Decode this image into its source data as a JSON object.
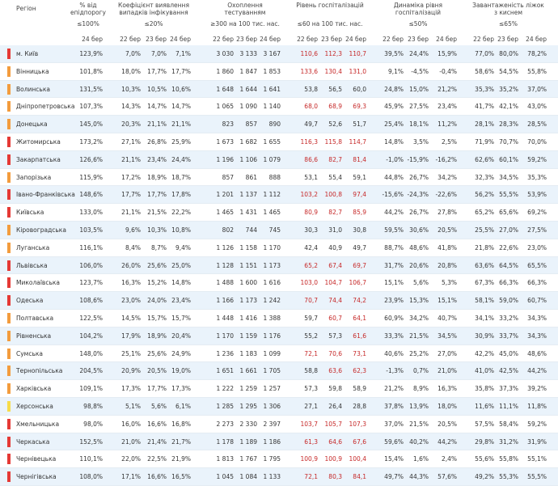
{
  "header": {
    "region": "Регіон",
    "groups": [
      {
        "title": "% від епідпорогу",
        "threshold": "≤100%",
        "dates": [
          "24 бер"
        ]
      },
      {
        "title": "Коефіцієнт виявлення випадків інфікування",
        "threshold": "≤20%",
        "dates": [
          "22 бер",
          "23 бер",
          "24 бер"
        ]
      },
      {
        "title": "Охоплення тестуванням",
        "threshold": "≥300 на 100 тис. нас.",
        "dates": [
          "22 бер",
          "23 бер",
          "24 бер"
        ]
      },
      {
        "title": "Рівень госпіталізацій",
        "threshold": "≤60 на 100 тис. нас.",
        "dates": [
          "22 бер",
          "23 бер",
          "24 бер"
        ]
      },
      {
        "title": "Динаміка рівня госпіталізацій",
        "threshold": "≤50%",
        "dates": [
          "22 бер",
          "23 бер",
          "24 бер"
        ]
      },
      {
        "title": "Завантаженість ліжок з киснем",
        "threshold": "≤65%",
        "dates": [
          "22 бер",
          "23 бер",
          "24 бер"
        ]
      }
    ]
  },
  "table": {
    "rows": [
      {
        "region": "м. Київ",
        "status_color": "#e53935",
        "cells": [
          "123,9%",
          "7,0%",
          "7,0%",
          "7,1%",
          "3 030",
          "3 133",
          "3 167",
          "110,6",
          "112,3",
          "110,7",
          "39,5%",
          "24,4%",
          "15,9%",
          "77,0%",
          "80,0%",
          "78,2%"
        ],
        "hosp_colors": [
          "#c62828",
          "#c62828",
          "#c62828"
        ]
      },
      {
        "region": "Вінницька",
        "status_color": "#f39c3d",
        "cells": [
          "101,8%",
          "18,0%",
          "17,7%",
          "17,7%",
          "1 860",
          "1 847",
          "1 853",
          "133,6",
          "130,4",
          "131,0",
          "9,1%",
          "-4,5%",
          "-0,4%",
          "58,6%",
          "54,5%",
          "55,8%"
        ],
        "hosp_colors": [
          "#c62828",
          "#c62828",
          "#c62828"
        ]
      },
      {
        "region": "Волинська",
        "status_color": "#f39c3d",
        "cells": [
          "131,5%",
          "10,3%",
          "10,5%",
          "10,6%",
          "1 648",
          "1 644",
          "1 641",
          "53,8",
          "56,5",
          "60,0",
          "24,8%",
          "15,0%",
          "21,2%",
          "35,3%",
          "35,2%",
          "37,0%"
        ],
        "hosp_colors": [
          "#333333",
          "#333333",
          "#333333"
        ]
      },
      {
        "region": "Дніпропетровська",
        "status_color": "#f39c3d",
        "cells": [
          "107,3%",
          "14,3%",
          "14,7%",
          "14,7%",
          "1 065",
          "1 090",
          "1 140",
          "68,0",
          "68,9",
          "69,3",
          "45,9%",
          "27,5%",
          "23,4%",
          "41,7%",
          "42,1%",
          "43,0%"
        ],
        "hosp_colors": [
          "#c62828",
          "#c62828",
          "#c62828"
        ]
      },
      {
        "region": "Донецька",
        "status_color": "#f39c3d",
        "cells": [
          "145,0%",
          "20,3%",
          "21,1%",
          "21,1%",
          "823",
          "857",
          "890",
          "49,7",
          "52,6",
          "51,7",
          "25,4%",
          "18,1%",
          "11,2%",
          "28,1%",
          "28,3%",
          "28,5%"
        ],
        "hosp_colors": [
          "#333333",
          "#333333",
          "#333333"
        ]
      },
      {
        "region": "Житомирська",
        "status_color": "#e53935",
        "cells": [
          "173,2%",
          "27,1%",
          "26,8%",
          "25,9%",
          "1 673",
          "1 682",
          "1 655",
          "116,3",
          "115,8",
          "114,7",
          "14,8%",
          "3,5%",
          "2,5%",
          "71,9%",
          "70,7%",
          "70,0%"
        ],
        "hosp_colors": [
          "#c62828",
          "#c62828",
          "#c62828"
        ]
      },
      {
        "region": "Закарпатська",
        "status_color": "#e53935",
        "cells": [
          "126,6%",
          "21,1%",
          "23,4%",
          "24,4%",
          "1 196",
          "1 106",
          "1 079",
          "86,6",
          "82,7",
          "81,4",
          "-1,0%",
          "-15,9%",
          "-16,2%",
          "62,6%",
          "60,1%",
          "59,2%"
        ],
        "hosp_colors": [
          "#c62828",
          "#c62828",
          "#c62828"
        ]
      },
      {
        "region": "Запорізька",
        "status_color": "#f39c3d",
        "cells": [
          "115,9%",
          "17,2%",
          "18,9%",
          "18,7%",
          "857",
          "861",
          "888",
          "53,1",
          "55,4",
          "59,1",
          "44,8%",
          "26,7%",
          "34,2%",
          "32,3%",
          "34,5%",
          "35,3%"
        ],
        "hosp_colors": [
          "#333333",
          "#333333",
          "#333333"
        ]
      },
      {
        "region": "Івано-Франківська",
        "status_color": "#e53935",
        "cells": [
          "148,6%",
          "17,7%",
          "17,7%",
          "17,8%",
          "1 201",
          "1 137",
          "1 112",
          "103,2",
          "100,8",
          "97,4",
          "-15,6%",
          "-24,3%",
          "-22,6%",
          "56,2%",
          "55,5%",
          "53,9%"
        ],
        "hosp_colors": [
          "#c62828",
          "#c62828",
          "#c62828"
        ]
      },
      {
        "region": "Київська",
        "status_color": "#e53935",
        "cells": [
          "133,0%",
          "21,1%",
          "21,5%",
          "22,2%",
          "1 465",
          "1 431",
          "1 465",
          "80,9",
          "82,7",
          "85,9",
          "44,2%",
          "26,7%",
          "27,8%",
          "65,2%",
          "65,6%",
          "69,2%"
        ],
        "hosp_colors": [
          "#c62828",
          "#c62828",
          "#c62828"
        ]
      },
      {
        "region": "Кіровоградська",
        "status_color": "#f39c3d",
        "cells": [
          "103,5%",
          "9,6%",
          "10,3%",
          "10,8%",
          "802",
          "744",
          "745",
          "30,3",
          "31,0",
          "30,8",
          "59,5%",
          "30,6%",
          "20,5%",
          "25,5%",
          "27,0%",
          "27,5%"
        ],
        "hosp_colors": [
          "#333333",
          "#333333",
          "#333333"
        ]
      },
      {
        "region": "Луганська",
        "status_color": "#f39c3d",
        "cells": [
          "116,1%",
          "8,4%",
          "8,7%",
          "9,4%",
          "1 126",
          "1 158",
          "1 170",
          "42,4",
          "40,9",
          "49,7",
          "88,7%",
          "48,6%",
          "41,8%",
          "21,8%",
          "22,6%",
          "23,0%"
        ],
        "hosp_colors": [
          "#333333",
          "#333333",
          "#333333"
        ]
      },
      {
        "region": "Львівська",
        "status_color": "#e53935",
        "cells": [
          "106,0%",
          "26,0%",
          "25,6%",
          "25,0%",
          "1 128",
          "1 151",
          "1 173",
          "65,2",
          "67,4",
          "69,7",
          "31,7%",
          "20,6%",
          "20,8%",
          "63,6%",
          "64,5%",
          "65,5%"
        ],
        "hosp_colors": [
          "#c62828",
          "#c62828",
          "#c62828"
        ]
      },
      {
        "region": "Миколаївська",
        "status_color": "#e53935",
        "cells": [
          "123,7%",
          "16,3%",
          "15,2%",
          "14,8%",
          "1 488",
          "1 600",
          "1 616",
          "103,0",
          "104,7",
          "106,7",
          "15,1%",
          "5,6%",
          "5,3%",
          "67,3%",
          "66,3%",
          "66,3%"
        ],
        "hosp_colors": [
          "#c62828",
          "#c62828",
          "#c62828"
        ]
      },
      {
        "region": "Одеська",
        "status_color": "#e53935",
        "cells": [
          "108,6%",
          "23,0%",
          "24,0%",
          "23,4%",
          "1 166",
          "1 173",
          "1 242",
          "70,7",
          "74,4",
          "74,2",
          "23,9%",
          "15,3%",
          "15,1%",
          "58,1%",
          "59,0%",
          "60,7%"
        ],
        "hosp_colors": [
          "#c62828",
          "#c62828",
          "#c62828"
        ]
      },
      {
        "region": "Полтавська",
        "status_color": "#f39c3d",
        "cells": [
          "122,5%",
          "14,5%",
          "15,7%",
          "15,7%",
          "1 448",
          "1 416",
          "1 388",
          "59,7",
          "60,7",
          "64,1",
          "60,9%",
          "34,2%",
          "40,7%",
          "34,1%",
          "33,2%",
          "34,3%"
        ],
        "hosp_colors": [
          "#333333",
          "#c62828",
          "#c62828"
        ]
      },
      {
        "region": "Рівненська",
        "status_color": "#f39c3d",
        "cells": [
          "104,2%",
          "17,9%",
          "18,9%",
          "20,4%",
          "1 170",
          "1 159",
          "1 176",
          "55,2",
          "57,3",
          "61,6",
          "33,3%",
          "21,5%",
          "34,5%",
          "30,9%",
          "33,7%",
          "34,3%"
        ],
        "hosp_colors": [
          "#333333",
          "#333333",
          "#c62828"
        ]
      },
      {
        "region": "Сумська",
        "status_color": "#f39c3d",
        "cells": [
          "148,0%",
          "25,1%",
          "25,6%",
          "24,9%",
          "1 236",
          "1 183",
          "1 099",
          "72,1",
          "70,6",
          "73,1",
          "40,6%",
          "25,2%",
          "27,0%",
          "42,2%",
          "45,0%",
          "48,6%"
        ],
        "hosp_colors": [
          "#c62828",
          "#c62828",
          "#c62828"
        ]
      },
      {
        "region": "Тернопільська",
        "status_color": "#f39c3d",
        "cells": [
          "204,5%",
          "20,9%",
          "20,5%",
          "19,0%",
          "1 651",
          "1 661",
          "1 705",
          "58,8",
          "63,6",
          "62,3",
          "-1,3%",
          "0,7%",
          "21,0%",
          "41,0%",
          "42,5%",
          "44,2%"
        ],
        "hosp_colors": [
          "#333333",
          "#c62828",
          "#c62828"
        ]
      },
      {
        "region": "Харківська",
        "status_color": "#f39c3d",
        "cells": [
          "109,1%",
          "17,3%",
          "17,7%",
          "17,3%",
          "1 222",
          "1 259",
          "1 257",
          "57,3",
          "59,8",
          "58,9",
          "21,2%",
          "8,9%",
          "16,3%",
          "35,8%",
          "37,3%",
          "39,2%"
        ],
        "hosp_colors": [
          "#333333",
          "#333333",
          "#333333"
        ]
      },
      {
        "region": "Херсонська",
        "status_color": "#f7dc4a",
        "cells": [
          "98,8%",
          "5,1%",
          "5,6%",
          "6,1%",
          "1 285",
          "1 295",
          "1 306",
          "27,1",
          "26,4",
          "28,8",
          "37,8%",
          "13,9%",
          "18,0%",
          "11,6%",
          "11,1%",
          "11,8%"
        ],
        "hosp_colors": [
          "#333333",
          "#333333",
          "#333333"
        ]
      },
      {
        "region": "Хмельницька",
        "status_color": "#e53935",
        "cells": [
          "98,0%",
          "16,0%",
          "16,6%",
          "16,8%",
          "2 273",
          "2 330",
          "2 397",
          "103,7",
          "105,7",
          "107,3",
          "37,0%",
          "21,5%",
          "20,5%",
          "57,5%",
          "58,4%",
          "59,2%"
        ],
        "hosp_colors": [
          "#c62828",
          "#c62828",
          "#c62828"
        ]
      },
      {
        "region": "Черкаська",
        "status_color": "#e53935",
        "cells": [
          "152,5%",
          "21,0%",
          "21,4%",
          "21,7%",
          "1 178",
          "1 189",
          "1 186",
          "61,3",
          "64,6",
          "67,6",
          "59,6%",
          "40,2%",
          "44,2%",
          "29,8%",
          "31,2%",
          "31,9%"
        ],
        "hosp_colors": [
          "#c62828",
          "#c62828",
          "#c62828"
        ]
      },
      {
        "region": "Чернівецька",
        "status_color": "#e53935",
        "cells": [
          "110,1%",
          "22,0%",
          "22,5%",
          "21,9%",
          "1 813",
          "1 767",
          "1 795",
          "100,9",
          "100,9",
          "100,4",
          "15,4%",
          "1,6%",
          "2,4%",
          "55,6%",
          "55,8%",
          "55,1%"
        ],
        "hosp_colors": [
          "#c62828",
          "#c62828",
          "#c62828"
        ]
      },
      {
        "region": "Чернігівська",
        "status_color": "#e53935",
        "cells": [
          "108,0%",
          "17,1%",
          "16,6%",
          "16,5%",
          "1 045",
          "1 084",
          "1 133",
          "72,1",
          "80,3",
          "84,1",
          "49,7%",
          "44,3%",
          "57,6%",
          "49,2%",
          "55,3%",
          "55,5%"
        ],
        "hosp_colors": [
          "#c62828",
          "#c62828",
          "#c62828"
        ]
      }
    ]
  }
}
